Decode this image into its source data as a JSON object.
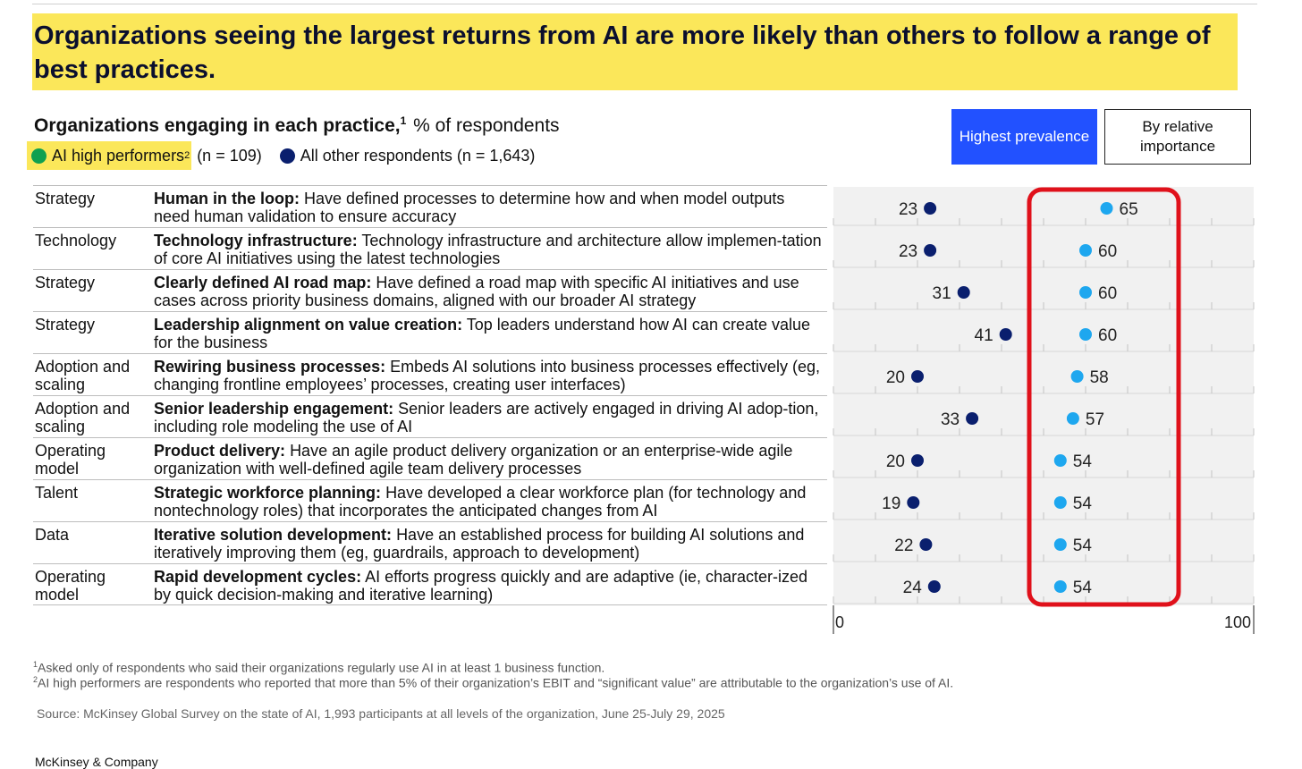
{
  "headline": "Organizations seeing the largest returns from AI are more likely than others to follow a range of best practices.",
  "subtitle": {
    "title": "Organizations engaging in each practice,",
    "footnote_ref": "1",
    "unit": "% of respondents"
  },
  "legend": {
    "high_performers_label": "AI high performers",
    "high_performers_ref": "2",
    "high_performers_n": "(n = 109)",
    "others_label": "All other respondents (n = 1,643)"
  },
  "buttons": {
    "primary": "Highest prevalence",
    "secondary": "By relative importance"
  },
  "rows": [
    {
      "category": "Strategy",
      "title": "Human in the loop:",
      "text": "Have defined processes to determine how and when model outputs need human validation to ensure accuracy"
    },
    {
      "category": "Technology",
      "title": "Technology infrastructure:",
      "text": "Technology infrastructure and architecture allow implemen-tation of core AI initiatives using the latest technologies"
    },
    {
      "category": "Strategy",
      "title": "Clearly defined AI road map:",
      "text": "Have defined a road map with specific AI initiatives and use cases across priority business domains, aligned with our broader AI strategy"
    },
    {
      "category": "Strategy",
      "title": "Leadership alignment on value creation:",
      "text": "Top leaders understand how AI can create value for the business"
    },
    {
      "category": "Adoption and scaling",
      "title": "Rewiring business processes:",
      "text": "Embeds AI solutions into business processes effectively (eg, changing frontline employees’ processes, creating user interfaces)"
    },
    {
      "category": "Adoption and scaling",
      "title": "Senior leadership engagement:",
      "text": "Senior leaders are actively engaged in driving AI adop-tion, including role modeling the use of AI"
    },
    {
      "category": "Operating model",
      "title": "Product delivery:",
      "text": "Have an agile product delivery organization or an enterprise-wide agile organization with well-defined agile team delivery processes"
    },
    {
      "category": "Talent",
      "title": "Strategic workforce planning:",
      "text": "Have developed a clear workforce plan (for technology and nontechnology roles) that incorporates the anticipated changes from AI"
    },
    {
      "category": "Data",
      "title": "Iterative solution development:",
      "text": "Have an established process for building AI solutions and iteratively improving them (eg, guardrails, approach to development)"
    },
    {
      "category": "Operating model",
      "title": "Rapid development cycles:",
      "text": "AI efforts progress quickly and are adaptive (ie, character-ized by quick decision-making and iterative learning)"
    }
  ],
  "chart_data": {
    "type": "scatter",
    "title": "Organizations engaging in each practice",
    "xlabel": "% of respondents",
    "xlim": [
      0,
      100
    ],
    "tick_labels": [
      "0",
      "100"
    ],
    "categories": [
      "Human in the loop",
      "Technology infrastructure",
      "Clearly defined AI road map",
      "Leadership alignment on value creation",
      "Rewiring business processes",
      "Senior leadership engagement",
      "Product delivery",
      "Strategic workforce planning",
      "Iterative solution development",
      "Rapid development cycles"
    ],
    "series": [
      {
        "name": "AI high performers (n = 109)",
        "values": [
          65,
          60,
          60,
          60,
          58,
          57,
          54,
          54,
          54,
          54
        ]
      },
      {
        "name": "All other respondents (n = 1,643)",
        "values": [
          23,
          23,
          31,
          41,
          20,
          33,
          20,
          19,
          22,
          24
        ]
      }
    ],
    "annotations": [
      "Red box highlighting AI high performer values"
    ]
  },
  "colors": {
    "highlight": "#fbe75a",
    "high_performers_legend": "#10a050",
    "high_performers_dot": "#1ea7ef",
    "others_dot": "#0a1f6e",
    "primary_button": "#2251ff",
    "highlight_box": "#e0111b",
    "plot_background": "#f1f1f1"
  },
  "footnotes": [
    {
      "ref": "1",
      "text": "Asked only of respondents who said their organizations regularly use AI in at least 1 business function."
    },
    {
      "ref": "2",
      "text": "AI high performers are respondents who reported that more than 5% of their organization’s EBIT and “significant value” are attributable to the organization’s use of AI."
    }
  ],
  "source": "Source: McKinsey Global Survey on the state of AI, 1,993 participants at all levels of the organization, June 25-July 29, 2025",
  "brand": "McKinsey & Company"
}
